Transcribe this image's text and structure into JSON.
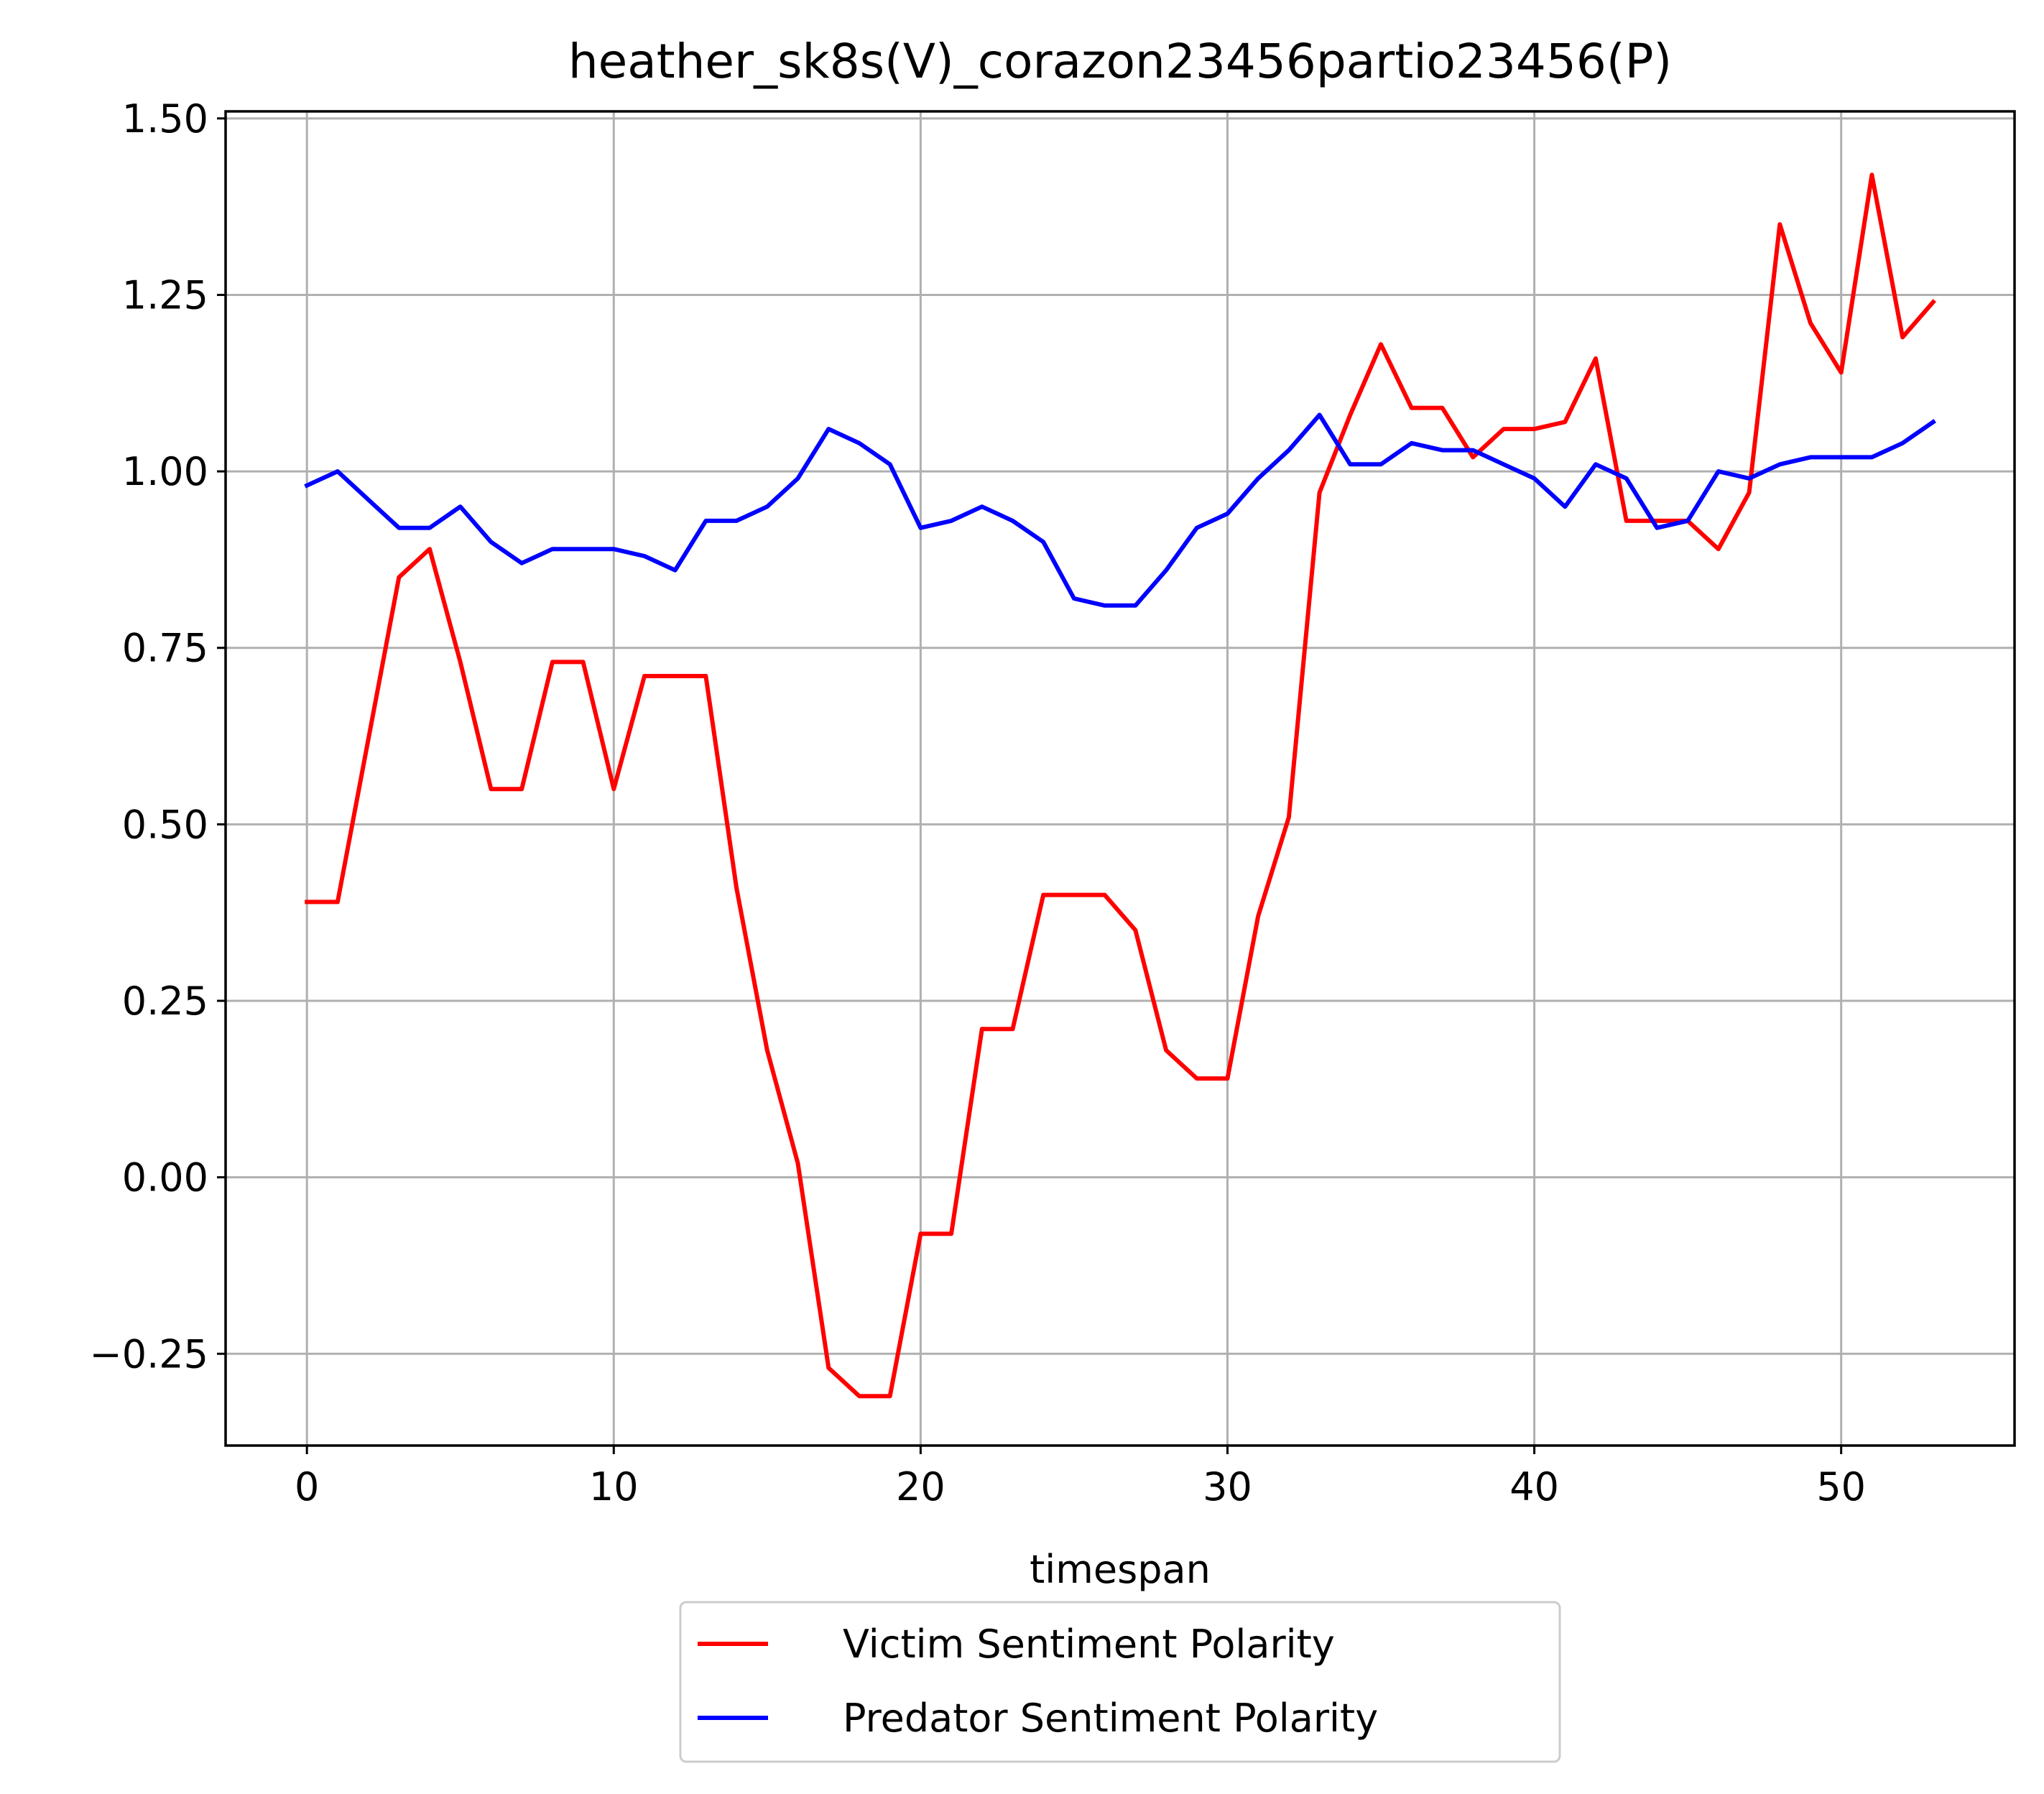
{
  "chart_data": {
    "type": "line",
    "title": "heather_sk8s(V)_corazon23456partio23456(P)",
    "xlabel": "timespan",
    "ylabel": "",
    "xlim": [
      -2.65,
      55.65
    ],
    "ylim": [
      -0.38,
      1.51
    ],
    "xticks": [
      0,
      10,
      20,
      30,
      40,
      50
    ],
    "xtick_labels": [
      "0",
      "10",
      "20",
      "30",
      "40",
      "50"
    ],
    "yticks": [
      -0.25,
      0.0,
      0.25,
      0.5,
      0.75,
      1.0,
      1.25,
      1.5
    ],
    "ytick_labels": [
      "−0.25",
      "0.00",
      "0.25",
      "0.50",
      "0.75",
      "1.00",
      "1.25",
      "1.50"
    ],
    "grid": true,
    "legend_position": "below-center",
    "series": [
      {
        "name": "Victim Sentiment Polarity",
        "color": "#ff0000",
        "x": [
          0,
          1,
          2,
          3,
          4,
          5,
          6,
          7,
          8,
          9,
          10,
          11,
          12,
          13,
          14,
          15,
          16,
          17,
          18,
          19,
          20,
          21,
          22,
          23,
          24,
          25,
          26,
          27,
          28,
          29,
          30,
          31,
          32,
          33,
          34,
          35,
          36,
          37,
          38,
          39,
          40,
          41,
          42,
          43,
          44,
          45,
          46,
          47,
          48,
          49,
          50,
          51,
          52,
          53
        ],
        "values": [
          0.39,
          0.39,
          0.62,
          0.85,
          0.89,
          0.73,
          0.55,
          0.55,
          0.73,
          0.73,
          0.55,
          0.71,
          0.71,
          0.71,
          0.41,
          0.18,
          0.02,
          -0.27,
          -0.31,
          -0.31,
          -0.08,
          -0.08,
          0.21,
          0.21,
          0.4,
          0.4,
          0.4,
          0.35,
          0.18,
          0.14,
          0.14,
          0.37,
          0.51,
          0.97,
          1.08,
          1.18,
          1.09,
          1.09,
          1.02,
          1.06,
          1.06,
          1.07,
          1.16,
          0.93,
          0.93,
          0.93,
          0.89,
          0.97,
          1.35,
          1.21,
          1.14,
          1.42,
          1.19,
          1.24
        ]
      },
      {
        "name": "Predator Sentiment Polarity",
        "color": "#0000ff",
        "x": [
          0,
          1,
          2,
          3,
          4,
          5,
          6,
          7,
          8,
          9,
          10,
          11,
          12,
          13,
          14,
          15,
          16,
          17,
          18,
          19,
          20,
          21,
          22,
          23,
          24,
          25,
          26,
          27,
          28,
          29,
          30,
          31,
          32,
          33,
          34,
          35,
          36,
          37,
          38,
          39,
          40,
          41,
          42,
          43,
          44,
          45,
          46,
          47,
          48,
          49,
          50,
          51,
          52,
          53
        ],
        "values": [
          0.98,
          1.0,
          0.96,
          0.92,
          0.92,
          0.95,
          0.9,
          0.87,
          0.89,
          0.89,
          0.89,
          0.88,
          0.86,
          0.93,
          0.93,
          0.95,
          0.99,
          1.06,
          1.04,
          1.01,
          0.92,
          0.93,
          0.95,
          0.93,
          0.9,
          0.82,
          0.81,
          0.81,
          0.86,
          0.92,
          0.94,
          0.99,
          1.03,
          1.08,
          1.01,
          1.01,
          1.04,
          1.03,
          1.03,
          1.01,
          0.99,
          0.95,
          1.01,
          0.99,
          0.92,
          0.93,
          1.0,
          0.99,
          1.01,
          1.02,
          1.02,
          1.02,
          1.04,
          1.07
        ]
      }
    ]
  }
}
